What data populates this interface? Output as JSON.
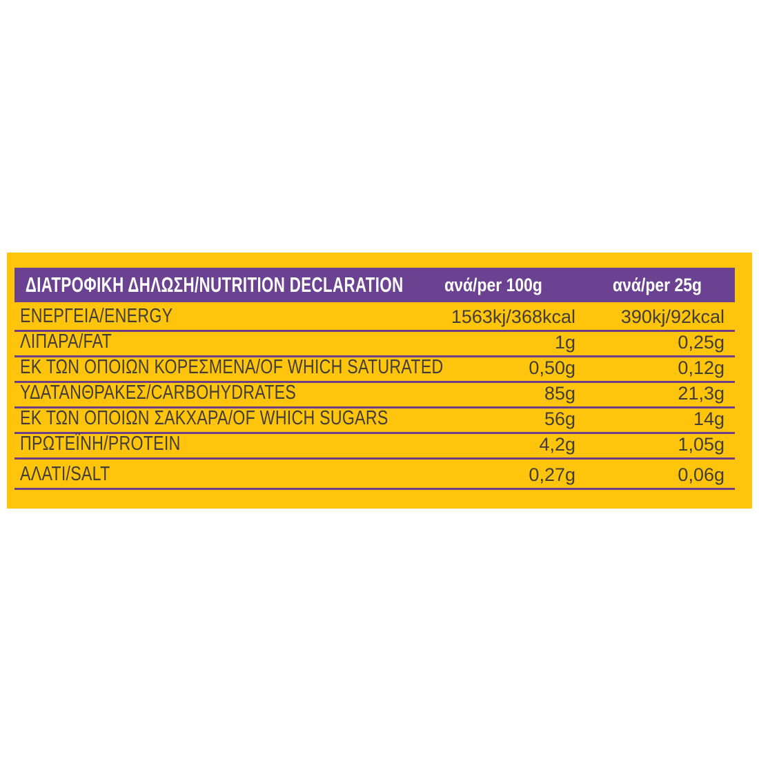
{
  "panel": {
    "background_color": "#FFC50D",
    "text_color": "#423D37",
    "divider_color": "#6C3E87",
    "header": {
      "background_color": "#6B4191",
      "text_color": "#FFFFFF",
      "title": "ΔΙΑΤΡΟΦΙΚΗ ΔΗΛΩΣΗ/NUTRITION DECLARATION",
      "col_per_100g": "ανά/per 100g",
      "col_per_25g": "ανά/per 25g"
    },
    "rows": [
      {
        "label": "ΕΝΕΡΓΕΙΑ/ENERGY",
        "per_100g": "1563kj/368kcal",
        "per_25g": "390kj/92kcal"
      },
      {
        "label": "ΛΙΠΑΡΑ/FAT",
        "per_100g": "1g",
        "per_25g": "0,25g"
      },
      {
        "label": "ΕΚ ΤΩΝ ΟΠΟΙΩΝ ΚΟΡΕΣΜΕΝΑ/OF WHICH SATURATED",
        "per_100g": "0,50g",
        "per_25g": "0,12g"
      },
      {
        "label": "ΥΔΑΤΑΝΘΡΑΚΕΣ/CARBOHYDRATES",
        "per_100g": "85g",
        "per_25g": "21,3g"
      },
      {
        "label": "ΕΚ ΤΩΝ ΟΠΟΙΩΝ ΣΑΚΧΑΡΑ/OF WHICH SUGARS",
        "per_100g": "56g",
        "per_25g": "14g"
      },
      {
        "label": "ΠΡΩΤΕΪΝΗ/PROTEIN",
        "per_100g": "4,2g",
        "per_25g": "1,05g"
      },
      {
        "label": "ΑΛΑΤΙ/SALT",
        "per_100g": "0,27g",
        "per_25g": "0,06g"
      }
    ]
  }
}
